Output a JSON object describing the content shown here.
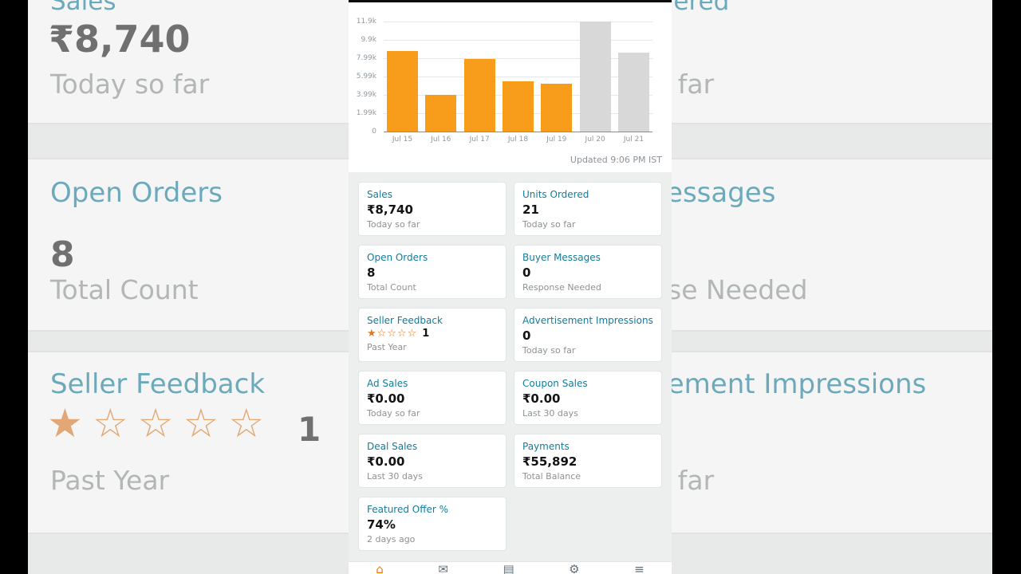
{
  "chart": {
    "updated_text": "Updated 9:06 PM IST"
  },
  "chart_data": {
    "type": "bar",
    "title": "",
    "xlabel": "",
    "ylabel": "",
    "categories": [
      "Jul 15",
      "Jul 16",
      "Jul 17",
      "Jul 18",
      "Jul 19",
      "Jul 20",
      "Jul 21"
    ],
    "values": [
      8700,
      4000,
      7850,
      5400,
      5200,
      11900,
      8550
    ],
    "bar_colors": [
      "#F89C1C",
      "#F89C1C",
      "#F89C1C",
      "#F89C1C",
      "#F89C1C",
      "#D8D8D8",
      "#D8D8D8"
    ],
    "y_ticks": [
      "11.9k",
      "9.9k",
      "7.99k",
      "5.99k",
      "3.99k",
      "1.99k",
      "0"
    ],
    "ylim": [
      0,
      11900
    ],
    "grid": true,
    "legend": null
  },
  "cards": [
    {
      "title": "Sales",
      "value": "₹8,740",
      "subtitle": "Today so far"
    },
    {
      "title": "Units Ordered",
      "value": "21",
      "subtitle": "Today so far"
    },
    {
      "title": "Open Orders",
      "value": "8",
      "subtitle": "Total Count"
    },
    {
      "title": "Buyer Messages",
      "value": "0",
      "subtitle": "Response Needed"
    },
    {
      "title": "Seller Feedback",
      "value": "1",
      "subtitle": "Past Year",
      "stars_filled": 1,
      "stars_total": 5
    },
    {
      "title": "Advertisement Impressions",
      "value": "0",
      "subtitle": "Today so far"
    },
    {
      "title": "Ad Sales",
      "value": "₹0.00",
      "subtitle": "Today so far"
    },
    {
      "title": "Coupon Sales",
      "value": "₹0.00",
      "subtitle": "Last 30 days"
    },
    {
      "title": "Deal Sales",
      "value": "₹0.00",
      "subtitle": "Last 30 days"
    },
    {
      "title": "Payments",
      "value": "₹55,892",
      "subtitle": "Total Balance"
    },
    {
      "title": "Featured Offer %",
      "value": "74%",
      "subtitle": "2 days ago"
    }
  ],
  "nav": {
    "items": [
      {
        "name": "home",
        "glyph": "⌂",
        "active": true
      },
      {
        "name": "communications",
        "glyph": "✉",
        "active": false
      },
      {
        "name": "orders",
        "glyph": "▤",
        "active": false
      },
      {
        "name": "settings",
        "glyph": "⚙",
        "active": false
      },
      {
        "name": "menu",
        "glyph": "≡",
        "active": false
      }
    ]
  },
  "colors": {
    "accent_orange": "#F89C1C",
    "bar_gray": "#D8D8D8",
    "link_teal": "#137C9B",
    "star_orange": "#DE7921",
    "value_dark": "#131313",
    "subtitle_gray": "#8D9292"
  }
}
